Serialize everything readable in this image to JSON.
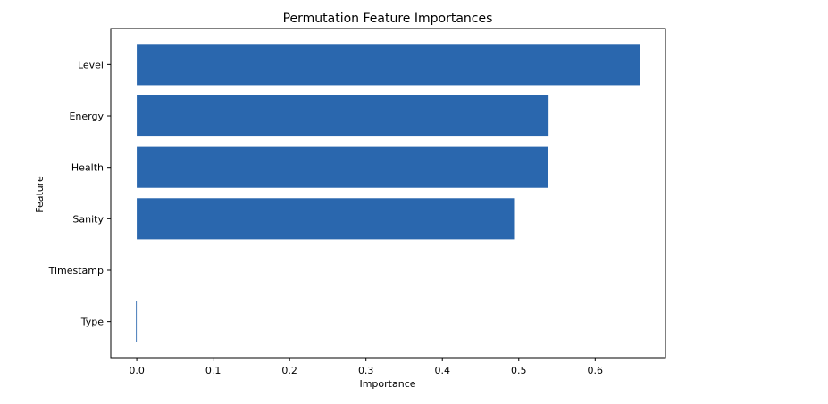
{
  "chart_data": {
    "type": "bar",
    "orientation": "horizontal",
    "title": "Permutation Feature Importances",
    "xlabel": "Importance",
    "ylabel": "Feature",
    "categories": [
      "Level",
      "Energy",
      "Health",
      "Sanity",
      "Timestamp",
      "Type"
    ],
    "values": [
      0.659,
      0.539,
      0.538,
      0.495,
      0.0,
      -0.001
    ],
    "xlim": [
      -0.034,
      0.692
    ],
    "xticks": [
      0.0,
      0.1,
      0.2,
      0.3,
      0.4,
      0.5,
      0.6
    ],
    "xtick_labels": [
      "0.0",
      "0.1",
      "0.2",
      "0.3",
      "0.4",
      "0.5",
      "0.6"
    ],
    "grid": false,
    "bar_color": "#2a67ae",
    "axis_color": "#000000"
  }
}
